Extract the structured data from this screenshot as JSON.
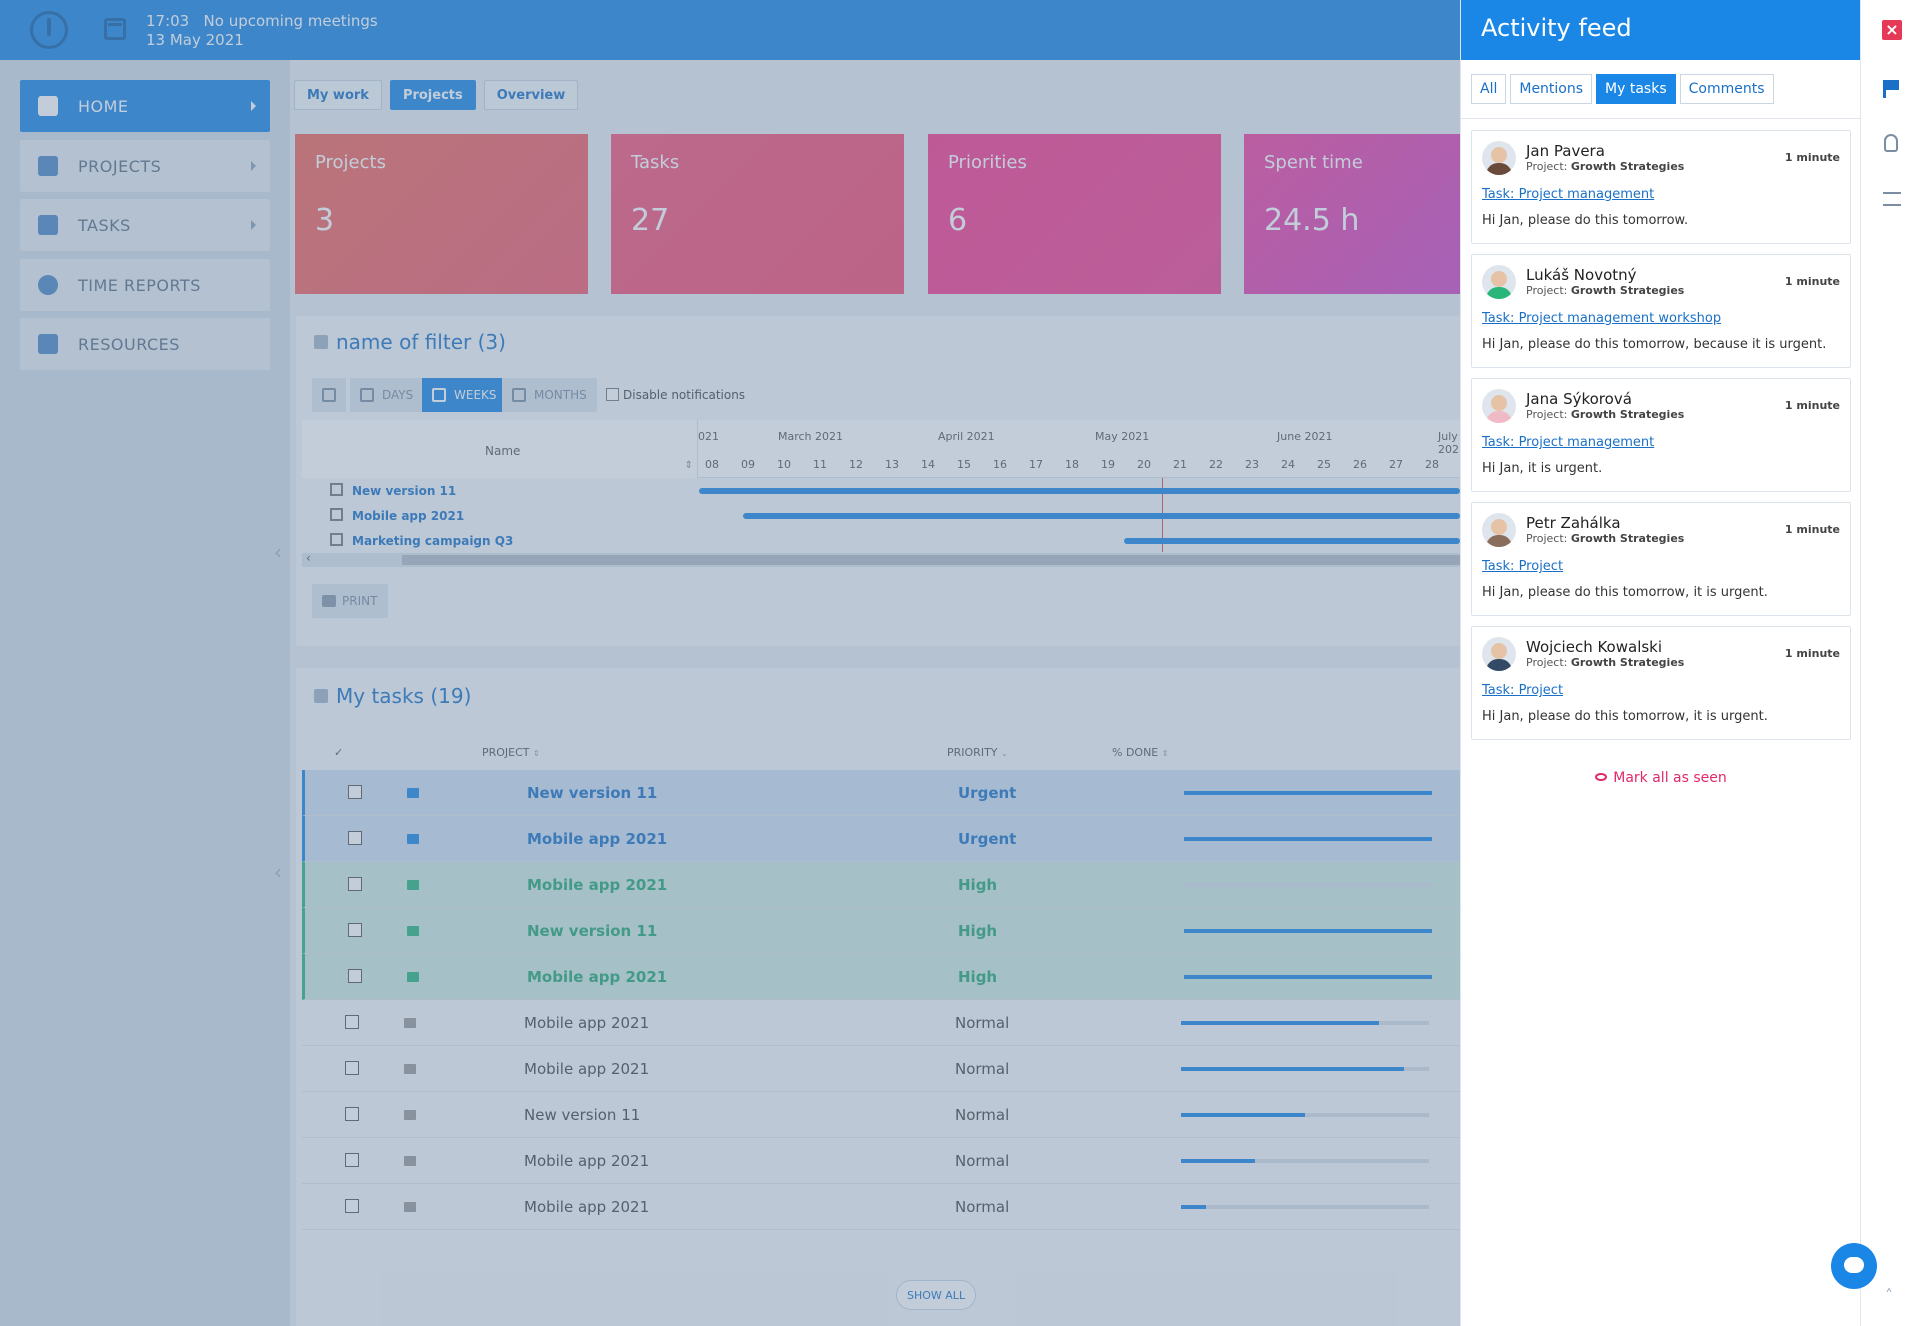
{
  "header": {
    "time": "17:03",
    "meetings": "No upcoming meetings",
    "date": "13 May 2021"
  },
  "sidebar": {
    "items": [
      {
        "label": "HOME"
      },
      {
        "label": "PROJECTS"
      },
      {
        "label": "TASKS"
      },
      {
        "label": "TIME REPORTS"
      },
      {
        "label": "RESOURCES"
      }
    ]
  },
  "dashboard_tabs": [
    "My work",
    "Projects",
    "Overview"
  ],
  "cards": [
    {
      "label": "Projects",
      "value": "3"
    },
    {
      "label": "Tasks",
      "value": "27"
    },
    {
      "label": "Priorities",
      "value": "6"
    },
    {
      "label": "Spent time",
      "value": "24.5 h"
    }
  ],
  "gantt": {
    "title": "name of filter (3)",
    "buttons": {
      "days": "DAYS",
      "weeks": "WEEKS",
      "months": "MONTHS"
    },
    "disable_notifications": "Disable notifications",
    "name_header": "Name",
    "months": [
      "021",
      "March 2021",
      "April 2021",
      "May 2021",
      "June 2021",
      "July 202"
    ],
    "weeks": [
      "08",
      "09",
      "10",
      "11",
      "12",
      "13",
      "14",
      "15",
      "16",
      "17",
      "18",
      "19",
      "20",
      "21",
      "22",
      "23",
      "24",
      "25",
      "26",
      "27",
      "28"
    ],
    "rows": [
      "New version 11",
      "Mobile app 2021",
      "Marketing campaign Q3"
    ],
    "print": "PRINT"
  },
  "tasks": {
    "title": "My tasks (19)",
    "headers": {
      "check": "✓",
      "project": "PROJECT",
      "priority": "PRIORITY",
      "done": "% DONE"
    },
    "rows": [
      {
        "project": "New version 11",
        "priority": "Urgent",
        "done": 100,
        "color": "#1a86e6"
      },
      {
        "project": "Mobile app 2021",
        "priority": "Urgent",
        "done": 100,
        "color": "#1a86e6"
      },
      {
        "project": "Mobile app 2021",
        "priority": "High",
        "done": 0,
        "color": "#2ab67a"
      },
      {
        "project": "New version 11",
        "priority": "High",
        "done": 100,
        "color": "#2ab67a"
      },
      {
        "project": "Mobile app 2021",
        "priority": "High",
        "done": 100,
        "color": "#2ab67a"
      },
      {
        "project": "Mobile app 2021",
        "priority": "Normal",
        "done": 80,
        "color": "#999999"
      },
      {
        "project": "Mobile app 2021",
        "priority": "Normal",
        "done": 90,
        "color": "#999999"
      },
      {
        "project": "New version 11",
        "priority": "Normal",
        "done": 50,
        "color": "#999999"
      },
      {
        "project": "Mobile app 2021",
        "priority": "Normal",
        "done": 30,
        "color": "#999999"
      },
      {
        "project": "Mobile app 2021",
        "priority": "Normal",
        "done": 10,
        "color": "#999999"
      }
    ],
    "show_all": "SHOW ALL"
  },
  "feed": {
    "title": "Activity feed",
    "tabs": [
      "All",
      "Mentions",
      "My tasks",
      "Comments"
    ],
    "project_prefix": "Project:",
    "items": [
      {
        "name": "Jan Pavera",
        "project": "Growth Strategies",
        "time": "1 minute",
        "link": "Task: Project management",
        "message": "Hi Jan, please do this tomorrow."
      },
      {
        "name": "Lukáš Novotný",
        "project": "Growth Strategies",
        "time": "1 minute",
        "link": "Task: Project management workshop",
        "message": "Hi Jan, please do this tomorrow, because it is urgent."
      },
      {
        "name": "Jana Sýkorová",
        "project": "Growth Strategies",
        "time": "1 minute",
        "link": "Task: Project management",
        "message": "Hi Jan, it is urgent."
      },
      {
        "name": "Petr Zahálka",
        "project": "Growth Strategies",
        "time": "1 minute",
        "link": "Task: Project",
        "message": "Hi Jan, please do this tomorrow, it is urgent."
      },
      {
        "name": "Wojciech Kowalski",
        "project": "Growth Strategies",
        "time": "1 minute",
        "link": "Task: Project",
        "message": "Hi Jan, please do this tomorrow, it is urgent."
      }
    ],
    "mark_all": "Mark all as seen"
  },
  "colors": {
    "accent": "#1a86e6",
    "card1": "#f0665a",
    "card2": "#f4547a",
    "card3": "#f9388c",
    "card4": "#d843b8",
    "urgent": "#1a70c7",
    "high": "#23a773",
    "close": "#e53957"
  },
  "icons": [
    "logo-icon",
    "calendar-icon",
    "dashboard-icon",
    "projects-icon",
    "tasks-icon",
    "stopwatch-icon",
    "resources-icon",
    "close-icon",
    "flag-icon",
    "lightbulb-icon",
    "checklist-icon",
    "chat-icon",
    "eye-icon",
    "print-icon"
  ]
}
